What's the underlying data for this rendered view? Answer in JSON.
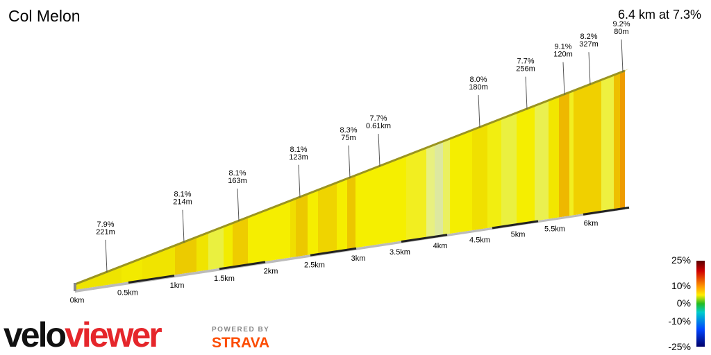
{
  "title": "Col Melon",
  "summary": "6.4 km at 7.3%",
  "distance_labels": [
    "0km",
    "0.5km",
    "1km",
    "1.5km",
    "2km",
    "2.5km",
    "3km",
    "3.5km",
    "4km",
    "4.5km",
    "5km",
    "5.5km",
    "6km"
  ],
  "annotations": [
    {
      "grade": "7.9%",
      "length": "221m"
    },
    {
      "grade": "8.1%",
      "length": "214m"
    },
    {
      "grade": "8.1%",
      "length": "163m"
    },
    {
      "grade": "8.1%",
      "length": "123m"
    },
    {
      "grade": "8.3%",
      "length": "75m"
    },
    {
      "grade": "7.7%",
      "length": "0.61km"
    },
    {
      "grade": "8.0%",
      "length": "180m"
    },
    {
      "grade": "7.7%",
      "length": "256m"
    },
    {
      "grade": "9.1%",
      "length": "120m"
    },
    {
      "grade": "8.2%",
      "length": "327m"
    },
    {
      "grade": "9.2%",
      "length": "80m"
    }
  ],
  "legend": [
    "25%",
    "10%",
    "0%",
    "-10%",
    "-25%"
  ],
  "brand": {
    "velo": "velo",
    "viewer": "viewer",
    "powered": "POWERED BY",
    "strava": "STRAVA"
  }
}
